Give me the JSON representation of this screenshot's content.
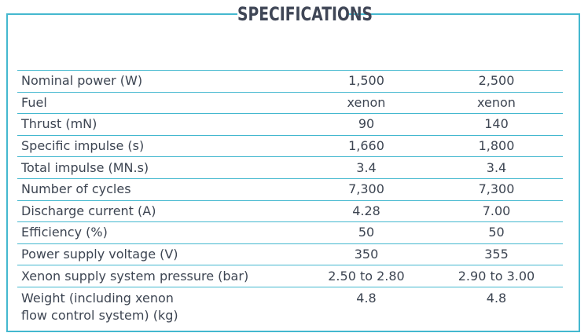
{
  "title": "SPECIFICATIONS",
  "colors": {
    "border": "#44b8cf",
    "text": "#3d4552"
  },
  "rows": [
    {
      "label": "Nominal power (W)",
      "v1": "1,500",
      "v2": "2,500"
    },
    {
      "label": "Fuel",
      "v1": "xenon",
      "v2": "xenon"
    },
    {
      "label": "Thrust (mN)",
      "v1": "90",
      "v2": "140"
    },
    {
      "label": "Specific impulse (s)",
      "v1": "1,660",
      "v2": "1,800"
    },
    {
      "label": "Total impulse (MN.s)",
      "v1": "3.4",
      "v2": "3.4"
    },
    {
      "label": "Number of cycles",
      "v1": "7,300",
      "v2": "7,300"
    },
    {
      "label": "Discharge current (A)",
      "v1": "4.28",
      "v2": "7.00"
    },
    {
      "label": "Efficiency (%)",
      "v1": "50",
      "v2": "50"
    },
    {
      "label": "Power supply voltage (V)",
      "v1": "350",
      "v2": "355"
    },
    {
      "label": "Xenon supply system pressure (bar)",
      "v1": "2.50 to 2.80",
      "v2": "2.90 to 3.00"
    }
  ],
  "last_row": {
    "label_line1": "Weight (including xenon",
    "label_line2": "flow control system) (kg)",
    "v1": "4.8",
    "v2": "4.8"
  }
}
